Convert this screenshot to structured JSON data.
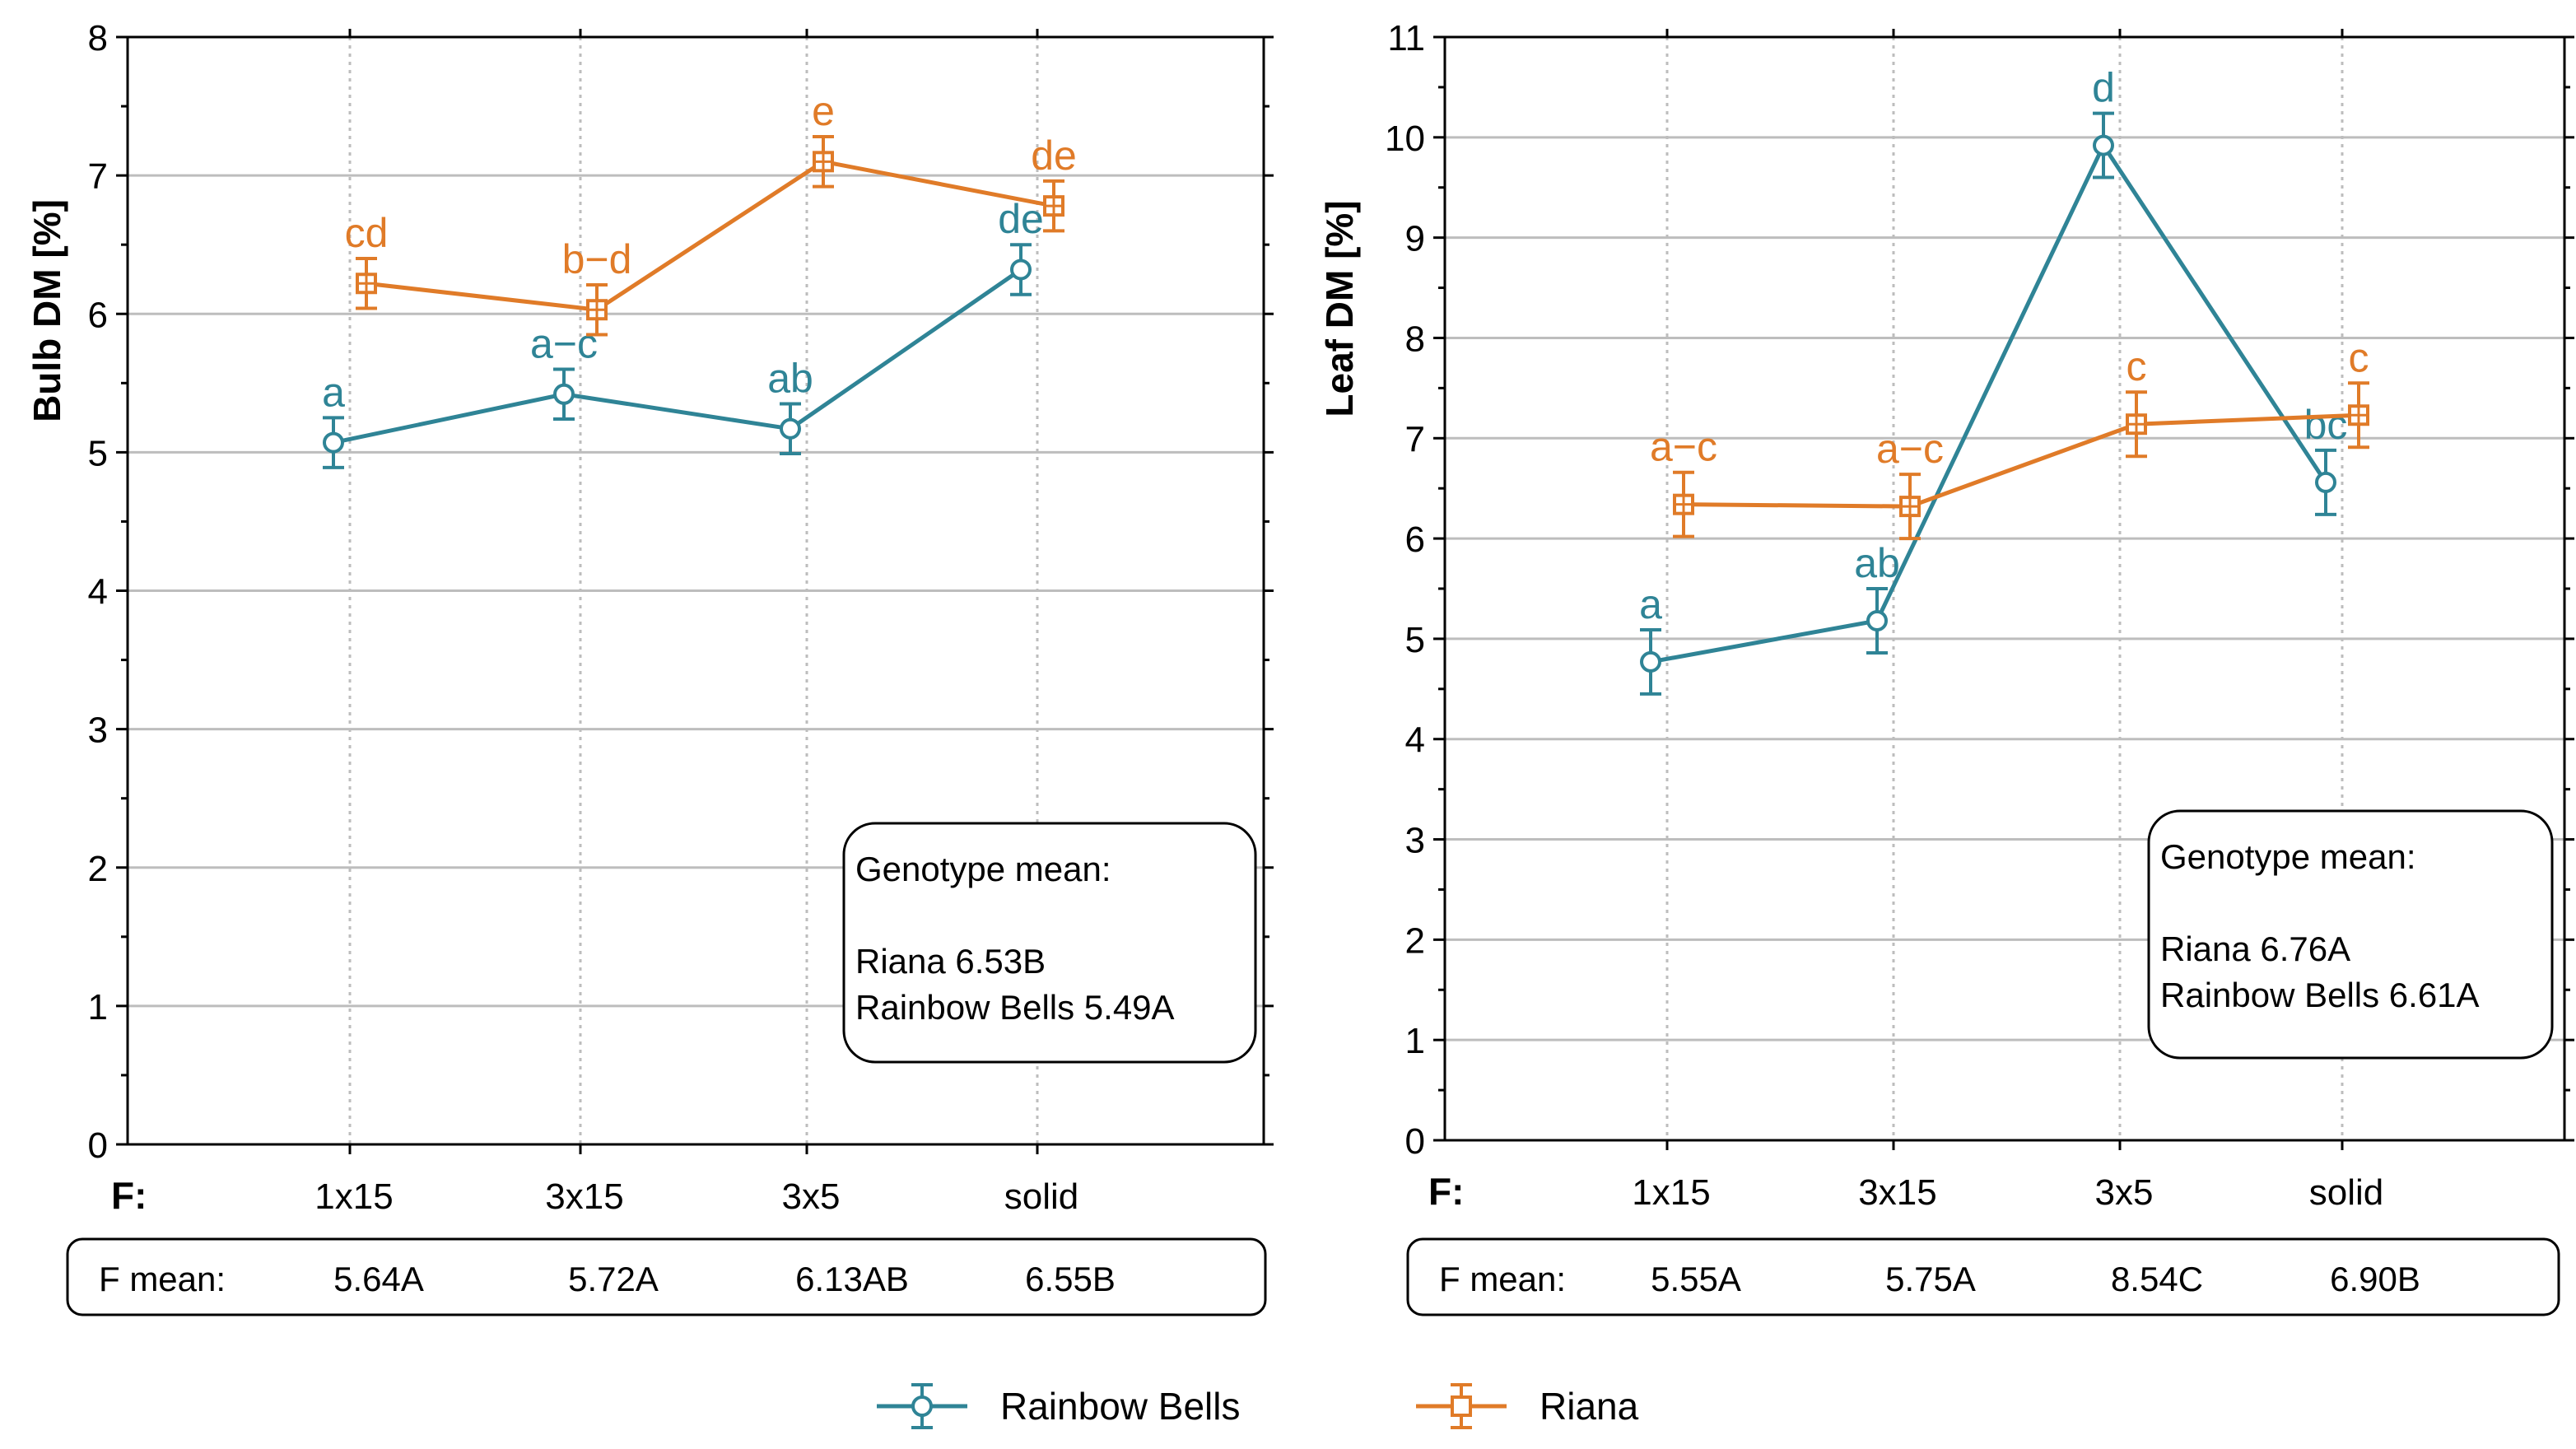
{
  "colors": {
    "rainbow_bells": "#2f8496",
    "riana": "#e07b28",
    "grid": "#bdbdbd",
    "axis": "#000000"
  },
  "legend": {
    "items": [
      {
        "label": "Rainbow Bells",
        "marker": "circle",
        "color": "#2f8496"
      },
      {
        "label": "Riana",
        "marker": "square",
        "color": "#e07b28"
      }
    ]
  },
  "chart_data": [
    {
      "type": "line",
      "title": "",
      "xlabel": "F:",
      "ylabel": "Bulb DM [%]",
      "categories": [
        "1x15",
        "3x15",
        "3x5",
        "solid"
      ],
      "ylim": [
        0,
        8
      ],
      "yticks": [
        0,
        1,
        2,
        3,
        4,
        5,
        6,
        7,
        8
      ],
      "grid": true,
      "series": [
        {
          "name": "Rainbow Bells",
          "values": [
            5.07,
            5.42,
            5.17,
            6.32
          ],
          "errors": [
            0.18,
            0.18,
            0.18,
            0.18
          ],
          "letters": [
            "a",
            "a−c",
            "ab",
            "de"
          ]
        },
        {
          "name": "Riana",
          "values": [
            6.22,
            6.03,
            7.1,
            6.78
          ],
          "errors": [
            0.18,
            0.18,
            0.18,
            0.18
          ],
          "letters": [
            "cd",
            "b−d",
            "e",
            "de"
          ]
        }
      ],
      "genotype_box": {
        "title": "Genotype mean:",
        "lines": [
          "Riana 6.53B",
          "Rainbow Bells 5.49A"
        ]
      },
      "f_mean": {
        "label": "F mean:",
        "values": [
          "5.64A",
          "5.72A",
          "6.13AB",
          "6.55B"
        ]
      }
    },
    {
      "type": "line",
      "title": "",
      "xlabel": "F:",
      "ylabel": "Leaf DM [%]",
      "categories": [
        "1x15",
        "3x15",
        "3x5",
        "solid"
      ],
      "ylim": [
        0,
        11
      ],
      "yticks": [
        0,
        1,
        2,
        3,
        4,
        5,
        6,
        7,
        8,
        9,
        10,
        11
      ],
      "grid": true,
      "series": [
        {
          "name": "Rainbow Bells",
          "values": [
            4.77,
            5.18,
            9.92,
            6.56
          ],
          "errors": [
            0.32,
            0.32,
            0.32,
            0.32
          ],
          "letters": [
            "a",
            "ab",
            "d",
            "bc"
          ]
        },
        {
          "name": "Riana",
          "values": [
            6.34,
            6.32,
            7.14,
            7.23
          ],
          "errors": [
            0.32,
            0.32,
            0.32,
            0.32
          ],
          "letters": [
            "a−c",
            "a−c",
            "c",
            "c"
          ]
        }
      ],
      "genotype_box": {
        "title": "Genotype mean:",
        "lines": [
          "Riana 6.76A",
          "Rainbow Bells 6.61A"
        ]
      },
      "f_mean": {
        "label": "F mean:",
        "values": [
          "5.55A",
          "5.75A",
          "8.54C",
          "6.90B"
        ]
      }
    }
  ]
}
